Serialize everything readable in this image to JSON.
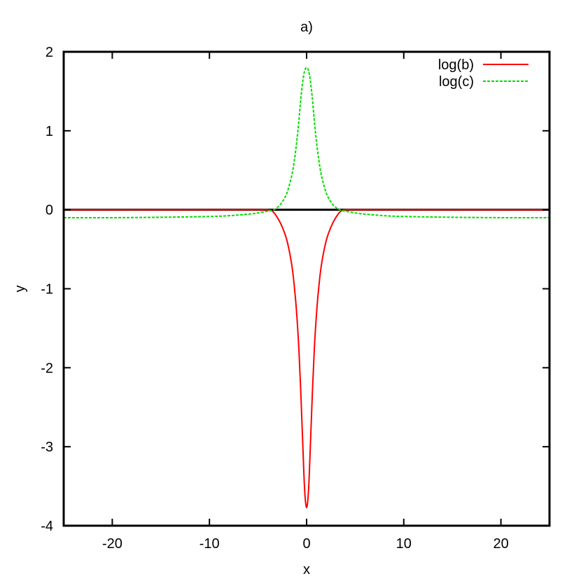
{
  "chart_data": {
    "type": "line",
    "title": "a)",
    "xlabel": "x",
    "ylabel": "y",
    "xlim": [
      -25,
      25
    ],
    "ylim": [
      -4,
      2
    ],
    "xticks": [
      -20,
      -10,
      0,
      10,
      20
    ],
    "yticks": [
      -4,
      -3,
      -2,
      -1,
      0,
      1,
      2
    ],
    "grid": false,
    "legend_position": "top-right",
    "baseline": {
      "y": 0,
      "color": "#000000"
    },
    "series": [
      {
        "name": "log(b)",
        "color": "#ff0000",
        "style": "solid",
        "x": [
          -25,
          -20,
          -15,
          -10,
          -8,
          -6,
          -5,
          -4,
          -3.5,
          -3,
          -2.5,
          -2,
          -1.5,
          -1.2,
          -1,
          -0.8,
          -0.6,
          -0.4,
          -0.2,
          0,
          0.2,
          0.4,
          0.6,
          0.8,
          1,
          1.2,
          1.5,
          2,
          2.5,
          3,
          3.5,
          4,
          5,
          6,
          8,
          10,
          15,
          20,
          25
        ],
        "y": [
          0,
          0,
          0,
          0,
          0,
          0,
          0,
          0,
          -0.02,
          -0.1,
          -0.22,
          -0.4,
          -0.72,
          -1.05,
          -1.35,
          -1.75,
          -2.3,
          -2.95,
          -3.55,
          -3.77,
          -3.55,
          -2.95,
          -2.3,
          -1.75,
          -1.35,
          -1.05,
          -0.72,
          -0.4,
          -0.22,
          -0.1,
          -0.02,
          0,
          0,
          0,
          0,
          0,
          0,
          0,
          0
        ]
      },
      {
        "name": "log(c)",
        "color": "#00dd00",
        "style": "dashed",
        "x": [
          -25,
          -20,
          -15,
          -10,
          -8,
          -6,
          -5,
          -4,
          -3.5,
          -3,
          -2.5,
          -2,
          -1.5,
          -1.2,
          -1,
          -0.8,
          -0.6,
          -0.4,
          -0.2,
          0,
          0.2,
          0.4,
          0.6,
          0.8,
          1,
          1.2,
          1.5,
          2,
          2.5,
          3,
          3.5,
          4,
          5,
          6,
          8,
          10,
          15,
          20,
          25
        ],
        "y": [
          -0.1,
          -0.1,
          -0.095,
          -0.085,
          -0.075,
          -0.055,
          -0.04,
          -0.018,
          -0.005,
          0.03,
          0.1,
          0.22,
          0.45,
          0.68,
          0.88,
          1.12,
          1.4,
          1.62,
          1.76,
          1.8,
          1.76,
          1.62,
          1.4,
          1.12,
          0.88,
          0.68,
          0.45,
          0.22,
          0.1,
          0.03,
          -0.005,
          -0.018,
          -0.04,
          -0.055,
          -0.075,
          -0.085,
          -0.095,
          -0.1,
          -0.1
        ]
      }
    ]
  }
}
